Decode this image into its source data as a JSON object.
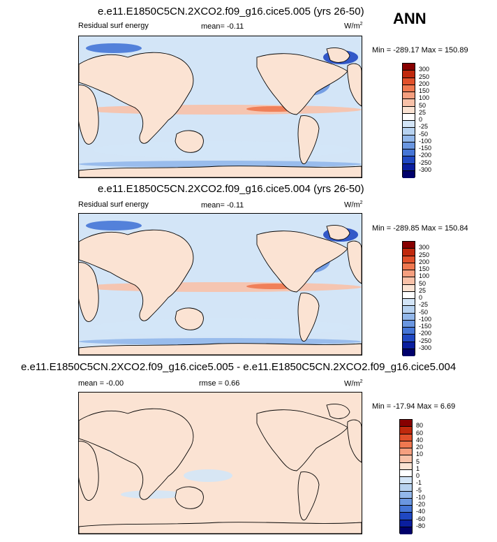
{
  "season": "ANN",
  "panels": [
    {
      "title": "e.e11.E1850C5CN.2XCO2.f09_g16.cice5.005 (yrs 26-50)",
      "left": "Residual surf energy",
      "stat": "mean=  -0.11",
      "units": "W/m",
      "units_sup": "2",
      "minmax": "Min = -289.17 Max = 150.89",
      "levels": [
        "300",
        "250",
        "200",
        "150",
        "100",
        "50",
        "25",
        "0",
        "-25",
        "-50",
        "-100",
        "-150",
        "-200",
        "-250",
        "-300"
      ]
    },
    {
      "title": "e.e11.E1850C5CN.2XCO2.f09_g16.cice5.004 (yrs 26-50)",
      "left": "Residual surf energy",
      "stat": "mean=  -0.11",
      "units": "W/m",
      "units_sup": "2",
      "minmax": "Min = -289.85 Max = 150.84",
      "levels": [
        "300",
        "250",
        "200",
        "150",
        "100",
        "50",
        "25",
        "0",
        "-25",
        "-50",
        "-100",
        "-150",
        "-200",
        "-250",
        "-300"
      ]
    },
    {
      "title": "e.e11.E1850C5CN.2XCO2.f09_g16.cice5.005 - e.e11.E1850C5CN.2XCO2.f09_g16.cice5.004",
      "left": "mean =  -0.00",
      "stat": "rmse =   0.66",
      "units": "W/m",
      "units_sup": "2",
      "minmax": "Min = -17.94 Max =   6.69",
      "levels": [
        "80",
        "60",
        "40",
        "20",
        "10",
        "5",
        "1",
        "0",
        "-1",
        "-5",
        "-10",
        "-20",
        "-40",
        "-60",
        "-80"
      ]
    }
  ],
  "colors": {
    "scale": [
      "#870000",
      "#c0290d",
      "#e1502b",
      "#ef7850",
      "#f59f7f",
      "#f8c1a8",
      "#fbe3d3",
      "#ffffff",
      "#d3e5f7",
      "#b7d2f0",
      "#92b7ea",
      "#6a96e0",
      "#4575d6",
      "#2048c2",
      "#0a1e9e",
      "#00006b"
    ],
    "land": "#fbe3d3",
    "coast": "#000000"
  }
}
